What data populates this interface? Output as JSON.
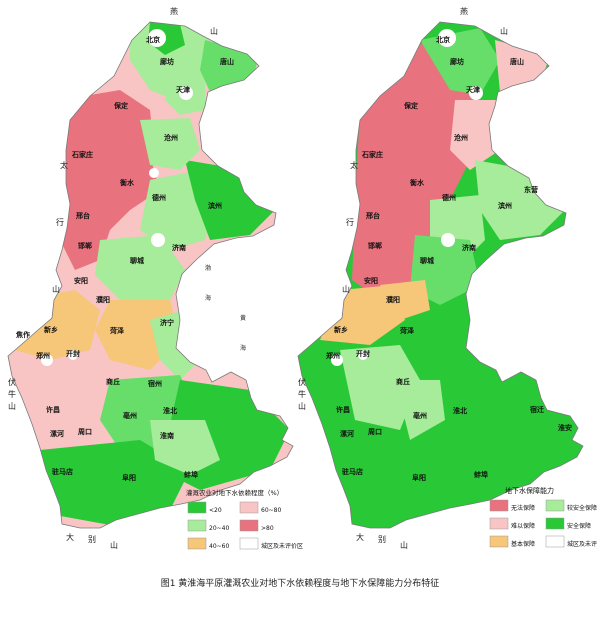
{
  "figure": {
    "caption": "图1 黄淮海平原灌溉农业对地下水依赖程度与地下水保障能力分布特征"
  },
  "colors": {
    "pink_dark": "#e8727e",
    "pink_mid": "#f4a3a6",
    "pink_light": "#f8c4c4",
    "green_bright": "#28c837",
    "green_mid": "#67dd6a",
    "green_light": "#a6ec9a",
    "orange": "#f6c679",
    "gray": "#d9d9d9",
    "white": "#ffffff",
    "city": "#ffffff",
    "text": "#1a1a1a"
  },
  "left_map": {
    "legend": {
      "title": "灌溉农业对地下水依赖程度（%）",
      "items": [
        {
          "label": "<20",
          "color": "#28c837"
        },
        {
          "label": "60~80",
          "color": "#f8c4c4"
        },
        {
          "label": "20~40",
          "color": "#a6ec9a"
        },
        {
          "label": ">80",
          "color": "#e8727e"
        },
        {
          "label": "40~60",
          "color": "#f6c679"
        },
        {
          "label": "城区及未评价区",
          "color": "#ffffff"
        }
      ]
    },
    "cities": [
      "北京",
      "廊坊",
      "天津",
      "唐山",
      "保定",
      "沧州",
      "石家庄",
      "衡水",
      "邢台",
      "德州",
      "滨州",
      "邯郸",
      "聊城",
      "济南",
      "安阳",
      "濮阳",
      "新乡",
      "焦作",
      "菏泽",
      "济宁",
      "郑州",
      "开封",
      "商丘",
      "许昌",
      "周口",
      "漯河",
      "淮北",
      "亳州",
      "驻马店",
      "阜阳",
      "蚌埠",
      "淮南",
      "宿州"
    ],
    "labels": {
      "yan": "燕",
      "shan_north": "山",
      "tai": "太",
      "hang": "行",
      "shan_west": "山",
      "fu": "伏",
      "niu": "牛",
      "shan_sw": "山",
      "da": "大",
      "bie": "别",
      "shan_south": "山",
      "bohai_1": "渤",
      "bohai_2": "海",
      "huanghai_1": "黄",
      "huanghai_2": "海"
    }
  },
  "right_map": {
    "legend": {
      "title": "地下水保障能力",
      "items": [
        {
          "label": "无法保障",
          "color": "#e8727e"
        },
        {
          "label": "较安全保障",
          "color": "#a6ec9a"
        },
        {
          "label": "难以保障",
          "color": "#f8c4c4"
        },
        {
          "label": "安全保障",
          "color": "#28c837"
        },
        {
          "label": "基本保障",
          "color": "#f6c679"
        },
        {
          "label": "城区及未评",
          "color": "#ffffff"
        }
      ]
    },
    "cities": [
      "北京",
      "廊坊",
      "天津",
      "唐山",
      "保定",
      "沧州",
      "石家庄",
      "衡水",
      "邢台",
      "德州",
      "滨州",
      "东营",
      "邯郸",
      "聊城",
      "济南",
      "安阳",
      "濮阳",
      "新乡",
      "菏泽",
      "郑州",
      "开封",
      "商丘",
      "许昌",
      "周口",
      "漯河",
      "淮北",
      "亳州",
      "宿迁",
      "驻马店",
      "阜阳",
      "蚌埠",
      "淮安"
    ],
    "labels": {
      "yan": "燕",
      "shan_north": "山",
      "tai": "太",
      "hang": "行",
      "shan_west": "山",
      "fu": "伏",
      "niu": "牛",
      "shan_sw": "山",
      "da": "大",
      "bie": "别",
      "shan_south": "山"
    }
  }
}
